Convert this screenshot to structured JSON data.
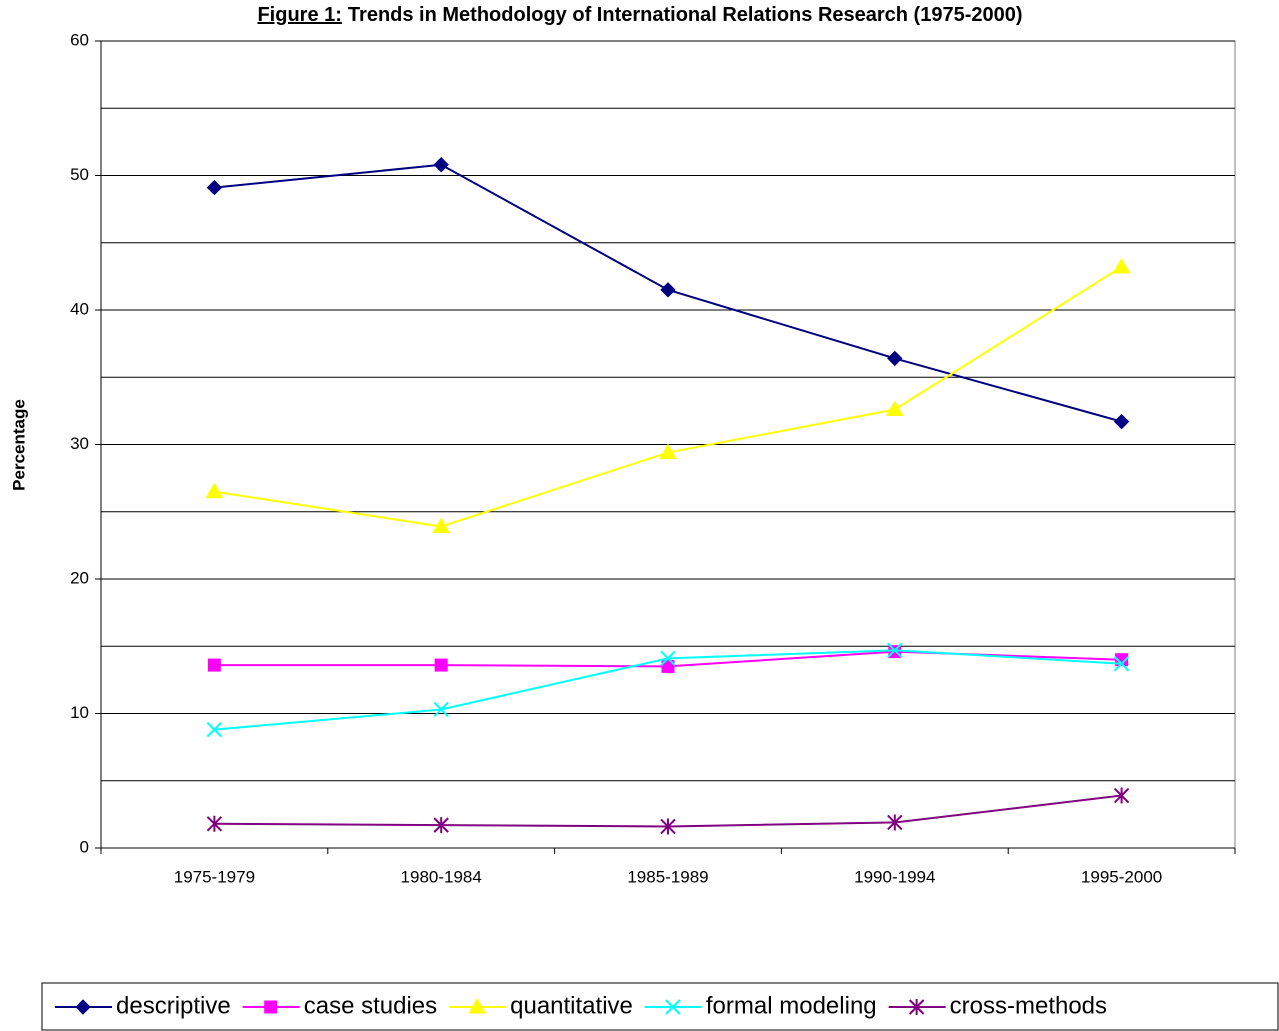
{
  "chart_data": {
    "type": "line",
    "title_label": "Figure 1:",
    "title": "Trends in Methodology of International Relations Research (1975-2000)",
    "y_label": "Percentage",
    "categories": [
      "1975-1979",
      "1980-1984",
      "1985-1989",
      "1990-1994",
      "1995-2000"
    ],
    "series": [
      {
        "name": "descriptive",
        "color": "#000080",
        "marker": "diamond",
        "values": [
          49.1,
          50.8,
          41.5,
          36.4,
          31.7
        ]
      },
      {
        "name": "case studies",
        "color": "#ff00ff",
        "marker": "square",
        "values": [
          13.6,
          13.6,
          13.5,
          14.6,
          14.0
        ]
      },
      {
        "name": "quantitative",
        "color": "#ffff00",
        "marker": "triangle",
        "values": [
          26.5,
          23.9,
          29.4,
          32.6,
          43.2
        ]
      },
      {
        "name": "formal modeling",
        "color": "#00ffff",
        "marker": "x",
        "values": [
          8.8,
          10.3,
          14.1,
          14.7,
          13.7
        ]
      },
      {
        "name": "cross-methods",
        "color": "#800080",
        "marker": "asterisk",
        "values": [
          1.8,
          1.7,
          1.6,
          1.9,
          3.9
        ]
      }
    ],
    "ylim": [
      0,
      60
    ],
    "yticks": [
      0,
      10,
      20,
      30,
      40,
      50,
      60
    ],
    "yticks_minor": [
      5,
      15,
      25,
      35,
      45,
      55
    ],
    "grid": true,
    "legend": "bottom"
  }
}
